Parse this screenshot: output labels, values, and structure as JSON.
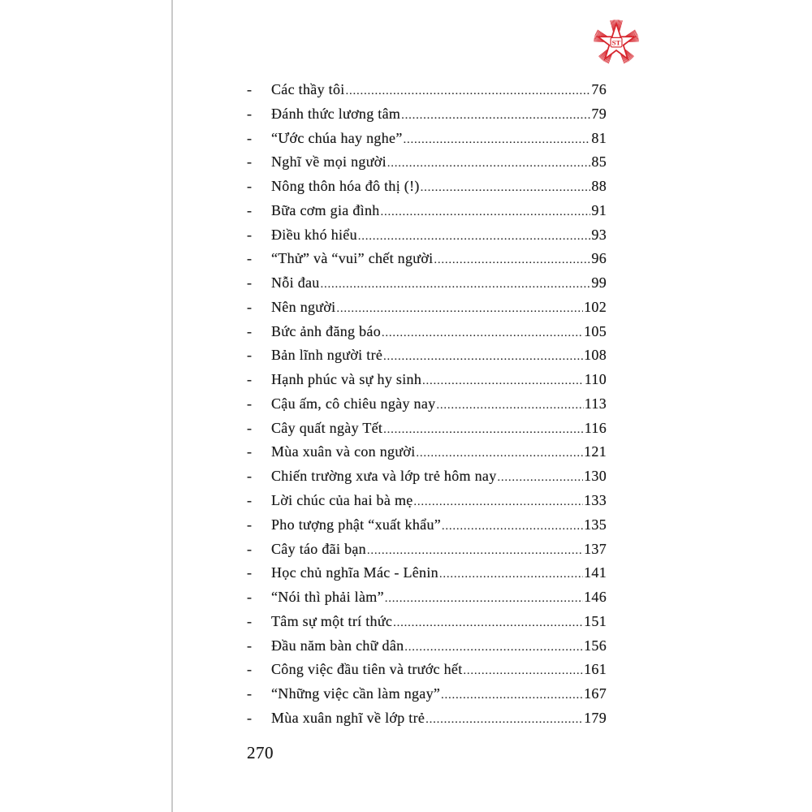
{
  "logo": {
    "text": "ST",
    "color": "#d7262e"
  },
  "toc": [
    {
      "title": "Các thầy tôi",
      "page": "76"
    },
    {
      "title": "Đánh thức lương tâm",
      "page": "79"
    },
    {
      "title": "“Ước chúa hay nghe”",
      "page": "81"
    },
    {
      "title": "Nghĩ về mọi người",
      "page": "85"
    },
    {
      "title": "Nông thôn hóa đô thị (!)",
      "page": "88"
    },
    {
      "title": "Bữa cơm gia đình",
      "page": "91"
    },
    {
      "title": "Điều khó hiểu",
      "page": "93"
    },
    {
      "title": "“Thử” và “vui” chết người",
      "page": "96"
    },
    {
      "title": "Nỗi đau",
      "page": "99"
    },
    {
      "title": "Nên người",
      "page": "102"
    },
    {
      "title": "Bức ảnh đăng báo",
      "page": "105"
    },
    {
      "title": "Bản lĩnh người trẻ",
      "page": "108"
    },
    {
      "title": "Hạnh phúc và sự hy sinh",
      "page": "110"
    },
    {
      "title": "Cậu ấm, cô chiêu ngày nay",
      "page": "113"
    },
    {
      "title": "Cây quất ngày Tết",
      "page": "116"
    },
    {
      "title": "Mùa xuân và con người",
      "page": "121"
    },
    {
      "title": "Chiến trường xưa và lớp trẻ hôm nay",
      "page": "130"
    },
    {
      "title": "Lời chúc của hai bà mẹ",
      "page": "133"
    },
    {
      "title": "Pho tượng phật “xuất khẩu”",
      "page": "135"
    },
    {
      "title": "Cây táo đãi bạn",
      "page": "137"
    },
    {
      "title": "Học chủ nghĩa Mác - Lênin",
      "page": "141"
    },
    {
      "title": "“Nói thì phải làm”",
      "page": "146"
    },
    {
      "title": "Tâm sự một trí thức",
      "page": "151"
    },
    {
      "title": "Đầu năm bàn chữ dân",
      "page": "156"
    },
    {
      "title": "Công việc đầu tiên và trước hết",
      "page": "161"
    },
    {
      "title": "“Những việc cần làm ngay”",
      "page": "167"
    },
    {
      "title": "Mùa xuân nghĩ về lớp trẻ",
      "page": "179"
    }
  ],
  "bullet": "-",
  "page_number": "270"
}
